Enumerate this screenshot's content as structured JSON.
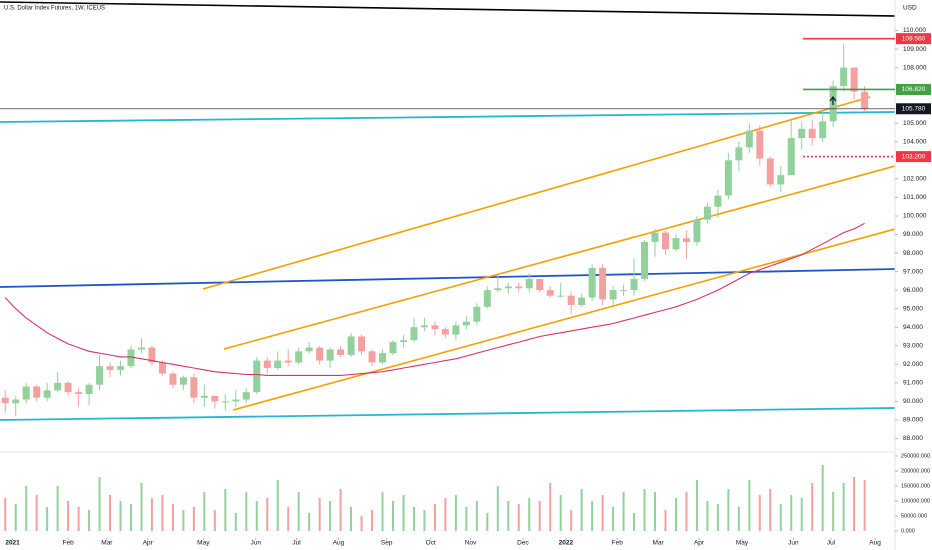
{
  "chart_data": {
    "type": "candlestick",
    "title": "U.S. Dollar Index Futures, 1W, ICEUS",
    "currency": "USD",
    "categories": [
      null,
      null,
      null,
      null,
      null,
      null,
      null,
      null,
      null,
      null,
      null,
      null,
      null,
      null,
      null,
      null,
      null,
      null,
      null,
      null,
      null,
      null,
      null,
      null,
      null,
      null,
      null,
      null,
      null,
      null,
      null,
      null,
      null,
      null,
      null,
      null,
      null,
      null,
      null,
      null,
      null,
      null,
      null,
      null,
      null,
      null,
      null,
      null,
      null,
      null,
      null,
      null,
      null,
      null,
      null,
      null,
      null,
      null,
      null,
      null,
      null,
      null,
      null,
      null,
      null,
      null,
      null,
      null,
      null,
      null,
      null,
      null,
      null,
      null,
      null,
      null,
      null,
      null,
      null,
      null,
      null,
      null,
      null
    ],
    "open": [
      90.2,
      89.9,
      90.1,
      90.8,
      90.2,
      90.6,
      91.0,
      90.5,
      90.4,
      90.9,
      91.9,
      91.7,
      91.9,
      92.8,
      92.9,
      92.1,
      91.5,
      90.9,
      91.3,
      90.2,
      90.3,
      90.0,
      90.0,
      90.1,
      90.5,
      92.2,
      91.8,
      92.2,
      92.1,
      92.7,
      92.9,
      92.2,
      92.8,
      92.5,
      93.5,
      92.7,
      92.1,
      92.6,
      93.2,
      93.3,
      94.0,
      94.1,
      93.9,
      93.6,
      94.1,
      94.3,
      95.1,
      96.0,
      96.1,
      96.2,
      96.1,
      96.6,
      96.0,
      95.7,
      95.7,
      95.2,
      95.6,
      97.2,
      95.5,
      96.0,
      96.0,
      96.6,
      98.6,
      99.1,
      98.2,
      98.8,
      98.6,
      99.8,
      100.5,
      101.1,
      103.0,
      103.7,
      104.6,
      103.1,
      101.7,
      102.2,
      104.2,
      104.7,
      104.2,
      105.1,
      107.0,
      108.0,
      106.7
    ],
    "high": [
      90.6,
      90.3,
      91.0,
      90.9,
      91.0,
      91.6,
      91.1,
      90.7,
      91.0,
      92.5,
      92.1,
      92.2,
      93.0,
      93.4,
      93.0,
      92.2,
      91.6,
      91.4,
      91.5,
      90.9,
      90.3,
      90.4,
      90.6,
      90.7,
      92.4,
      92.4,
      92.7,
      92.8,
      92.9,
      93.2,
      93.0,
      92.9,
      93.0,
      93.7,
      93.6,
      92.8,
      92.8,
      93.3,
      93.6,
      94.5,
      94.5,
      94.3,
      94.0,
      94.3,
      94.6,
      95.3,
      96.2,
      96.8,
      96.4,
      96.4,
      96.9,
      96.6,
      96.2,
      96.4,
      95.9,
      95.8,
      97.4,
      97.4,
      96.2,
      96.3,
      97.7,
      98.7,
      99.3,
      99.2,
      99.0,
      99.2,
      100.0,
      100.7,
      101.4,
      103.4,
      104.0,
      105.0,
      104.9,
      103.2,
      102.7,
      105.2,
      105.1,
      105.2,
      105.6,
      107.3,
      109.3,
      108.0,
      107.0
    ],
    "low": [
      89.4,
      89.2,
      89.9,
      90.0,
      90.0,
      90.5,
      90.3,
      89.7,
      89.8,
      90.6,
      91.3,
      91.4,
      91.8,
      92.6,
      91.9,
      91.4,
      90.7,
      90.6,
      89.9,
      89.7,
      89.6,
      89.5,
      89.7,
      89.9,
      90.4,
      91.5,
      91.7,
      91.9,
      92.0,
      92.6,
      92.0,
      91.8,
      92.4,
      92.4,
      92.5,
      91.9,
      92.0,
      92.5,
      92.9,
      93.2,
      93.8,
      93.6,
      93.4,
      93.3,
      93.9,
      94.1,
      95.0,
      95.9,
      95.8,
      95.9,
      95.9,
      95.9,
      95.6,
      95.6,
      94.7,
      95.1,
      95.4,
      95.2,
      95.2,
      95.7,
      95.7,
      96.5,
      97.8,
      97.9,
      98.1,
      97.7,
      98.4,
      99.6,
      99.9,
      100.9,
      102.4,
      103.4,
      102.7,
      101.6,
      101.3,
      102.2,
      103.6,
      103.8,
      104.0,
      104.8,
      106.7,
      106.3,
      105.6
    ],
    "close": [
      89.9,
      90.1,
      90.8,
      90.2,
      90.6,
      91.0,
      90.5,
      90.4,
      90.9,
      91.9,
      91.7,
      91.9,
      92.8,
      92.9,
      92.1,
      91.5,
      90.9,
      91.3,
      90.2,
      90.3,
      90.0,
      90.0,
      90.1,
      90.5,
      92.2,
      91.8,
      92.2,
      92.1,
      92.7,
      92.9,
      92.2,
      92.8,
      92.5,
      93.5,
      92.7,
      92.1,
      92.6,
      93.2,
      93.3,
      94.0,
      94.1,
      93.9,
      93.6,
      94.1,
      94.3,
      95.1,
      96.0,
      96.1,
      96.2,
      96.1,
      96.6,
      96.0,
      95.7,
      95.7,
      95.2,
      95.6,
      97.2,
      95.5,
      96.0,
      96.0,
      96.6,
      98.6,
      99.1,
      98.2,
      98.8,
      98.6,
      99.8,
      100.5,
      101.1,
      103.0,
      103.7,
      104.6,
      103.1,
      101.7,
      102.2,
      104.2,
      104.7,
      104.2,
      105.1,
      107.0,
      108.0,
      106.7,
      105.78
    ],
    "up_color": "#92d19b",
    "down_color": "#f5a0a0",
    "xlim": [
      -0.5,
      84.9
    ],
    "xticks": [
      {
        "value": 0.7,
        "label": "2021"
      },
      {
        "value": 6.0,
        "label": "Feb"
      },
      {
        "value": 9.7,
        "label": "Mar"
      },
      {
        "value": 13.6,
        "label": "Apr"
      },
      {
        "value": 18.9,
        "label": "May"
      },
      {
        "value": 23.9,
        "label": "Jun"
      },
      {
        "value": 27.8,
        "label": "Jul"
      },
      {
        "value": 31.8,
        "label": "Aug"
      },
      {
        "value": 36.4,
        "label": "Sep"
      },
      {
        "value": 40.6,
        "label": "Oct"
      },
      {
        "value": 44.4,
        "label": "Nov"
      },
      {
        "value": 49.4,
        "label": "Dec"
      },
      {
        "value": 53.5,
        "label": "2022"
      },
      {
        "value": 58.4,
        "label": "Feb"
      },
      {
        "value": 62.3,
        "label": "Mar"
      },
      {
        "value": 66.2,
        "label": "Apr"
      },
      {
        "value": 70.3,
        "label": "May"
      },
      {
        "value": 75.2,
        "label": "Jun"
      },
      {
        "value": 78.8,
        "label": "Jul"
      },
      {
        "value": 83.0,
        "label": "Aug"
      }
    ],
    "ylim": [
      87.11,
      111.645
    ],
    "yticks": [
      {
        "value": 88,
        "label": "88.000"
      },
      {
        "value": 89,
        "label": "89.000"
      },
      {
        "value": 90,
        "label": "90.000"
      },
      {
        "value": 91,
        "label": "91.000"
      },
      {
        "value": 92,
        "label": "92.000"
      },
      {
        "value": 93,
        "label": "93.000"
      },
      {
        "value": 94,
        "label": "94.000"
      },
      {
        "value": 95,
        "label": "95.000"
      },
      {
        "value": 96,
        "label": "96.000"
      },
      {
        "value": 97,
        "label": "97.000"
      },
      {
        "value": 98,
        "label": "98.000"
      },
      {
        "value": 99,
        "label": "99.000"
      },
      {
        "value": 100,
        "label": "100.000"
      },
      {
        "value": 101,
        "label": "101.000"
      },
      {
        "value": 102,
        "label": "102.000"
      },
      {
        "value": 104,
        "label": "104.000"
      },
      {
        "value": 105,
        "label": "105.000"
      },
      {
        "value": 108,
        "label": "108.000"
      },
      {
        "value": 109,
        "label": "109.000"
      },
      {
        "value": 110,
        "label": "110.000"
      }
    ],
    "moving_average": {
      "color": "#d6336c",
      "values": [
        95.6,
        95.0,
        94.5,
        94.1,
        93.7,
        93.4,
        93.1,
        92.9,
        92.7,
        92.6,
        92.5,
        92.4,
        92.4,
        92.3,
        92.2,
        92.1,
        92.0,
        91.9,
        91.8,
        91.7,
        91.6,
        91.55,
        91.5,
        91.45,
        91.45,
        91.4,
        91.4,
        91.4,
        91.4,
        91.4,
        91.4,
        91.4,
        91.4,
        91.45,
        91.5,
        91.55,
        91.6,
        91.7,
        91.8,
        91.9,
        92.0,
        92.1,
        92.2,
        92.3,
        92.45,
        92.6,
        92.75,
        92.9,
        93.05,
        93.2,
        93.35,
        93.5,
        93.6,
        93.7,
        93.8,
        93.9,
        94.0,
        94.1,
        94.2,
        94.35,
        94.5,
        94.65,
        94.8,
        94.95,
        95.1,
        95.3,
        95.5,
        95.75,
        96.0,
        96.3,
        96.6,
        96.9,
        97.1,
        97.3,
        97.5,
        97.7,
        97.9,
        98.2,
        98.5,
        98.8,
        99.1,
        99.3,
        99.6
      ]
    },
    "levels": [
      {
        "value": 109.56,
        "label": "109.560",
        "color": "#f23645",
        "style": "solid"
      },
      {
        "value": 106.82,
        "label": "106.820",
        "color": "#43a047",
        "style": "solid"
      },
      {
        "value": 105.78,
        "label": "105.780",
        "color": "#131722",
        "style": "full"
      },
      {
        "value": 103.2,
        "label": "103.200",
        "color": "#f23645",
        "style": "dotted"
      }
    ],
    "volume": {
      "values": [
        110000,
        90000,
        150000,
        120000,
        80000,
        150000,
        100000,
        80000,
        70000,
        180000,
        120000,
        100000,
        90000,
        160000,
        110000,
        120000,
        90000,
        70000,
        80000,
        130000,
        70000,
        140000,
        60000,
        130000,
        100000,
        110000,
        170000,
        80000,
        130000,
        60000,
        110000,
        100000,
        140000,
        80000,
        50000,
        70000,
        130000,
        100000,
        120000,
        80000,
        70000,
        90000,
        110000,
        120000,
        80000,
        100000,
        60000,
        150000,
        100000,
        90000,
        110000,
        100000,
        160000,
        120000,
        70000,
        140000,
        100000,
        120000,
        80000,
        130000,
        60000,
        140000,
        130000,
        70000,
        110000,
        130000,
        170000,
        100000,
        90000,
        140000,
        80000,
        170000,
        120000,
        140000,
        90000,
        120000,
        110000,
        160000,
        220000,
        130000,
        160000,
        180000,
        170000
      ],
      "ylim": [
        -30000,
        263333
      ],
      "yticks": [
        {
          "value": 0,
          "label": "0.000"
        },
        {
          "value": 50000,
          "label": "50000.000"
        },
        {
          "value": 100000,
          "label": "100000.000"
        },
        {
          "value": 150000,
          "label": "150000.000"
        },
        {
          "value": 200000,
          "label": "200000.000"
        },
        {
          "value": 250000,
          "label": "250000.000"
        }
      ]
    }
  }
}
